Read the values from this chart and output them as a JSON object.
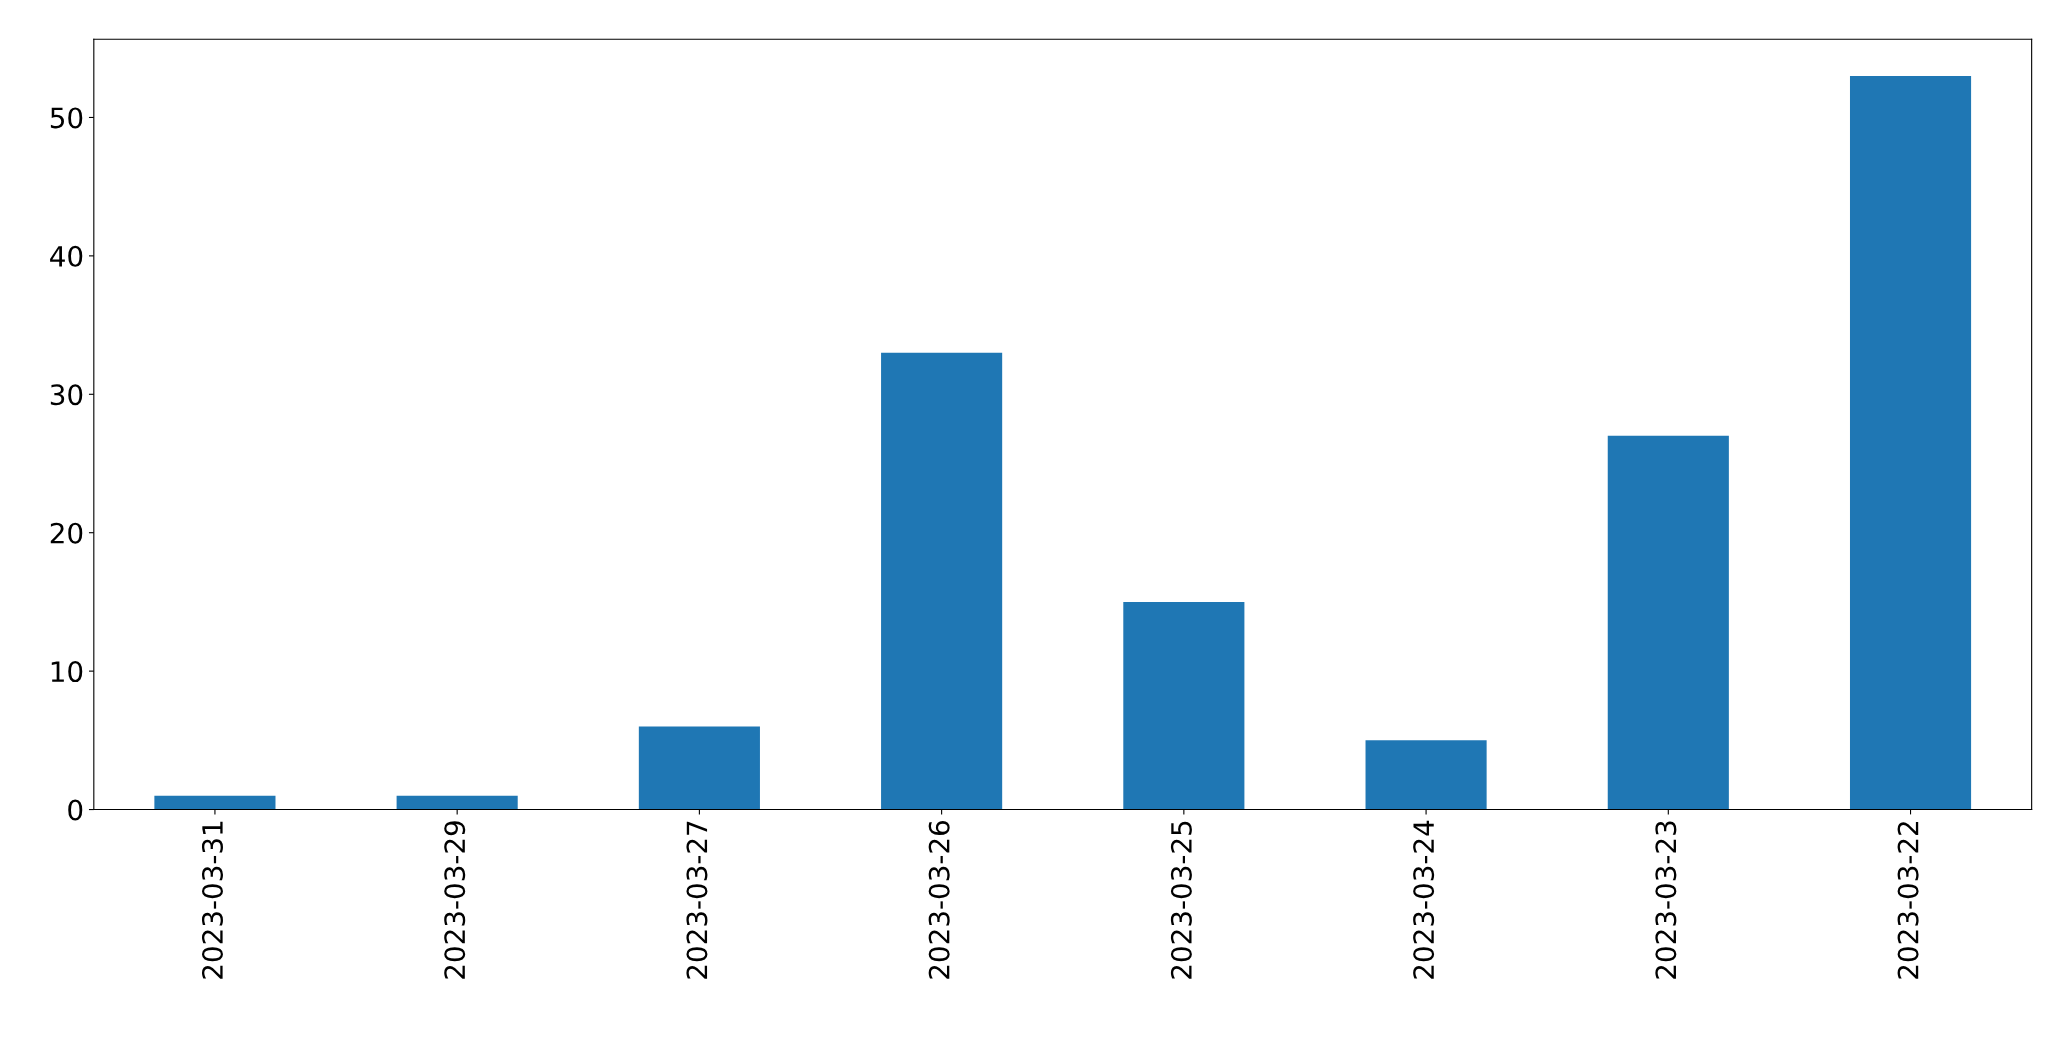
{
  "chart_data": {
    "type": "bar",
    "categories": [
      "2023-03-31",
      "2023-03-29",
      "2023-03-27",
      "2023-03-26",
      "2023-03-25",
      "2023-03-24",
      "2023-03-23",
      "2023-03-22"
    ],
    "values": [
      1,
      1,
      6,
      33,
      15,
      5,
      27,
      53
    ],
    "color": "#1f77b4",
    "ylim": [
      0,
      55.65
    ],
    "yticks": [
      0,
      10,
      20,
      30,
      40,
      50
    ],
    "grid": false,
    "legend": false
  }
}
